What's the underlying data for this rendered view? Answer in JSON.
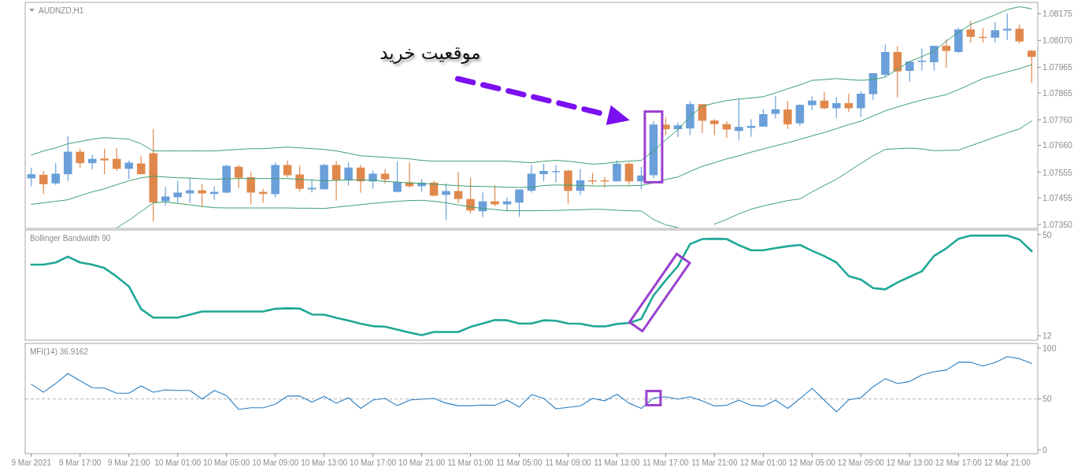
{
  "chart_data": [
    {
      "type": "candlestick",
      "title": "AUDNZD,H1",
      "categories": [
        null,
        null,
        null,
        null,
        null,
        null,
        null,
        null,
        null,
        null,
        null,
        null,
        null,
        null,
        null,
        null,
        null,
        null,
        null,
        null,
        null,
        null,
        null,
        null,
        null,
        null,
        null,
        null,
        null,
        null,
        null,
        null,
        null,
        null,
        null,
        null,
        null,
        null,
        null,
        null,
        null,
        null,
        null,
        null,
        null,
        null,
        null,
        null,
        null,
        null,
        null,
        null,
        null,
        null,
        null,
        null,
        null,
        null,
        null,
        null,
        null,
        null,
        null,
        null,
        null,
        null,
        null,
        null,
        null,
        null,
        null,
        null,
        null,
        null,
        null,
        null,
        null,
        null,
        null,
        null,
        null,
        null,
        null
      ],
      "ohlc": [
        [
          1.07531,
          1.07573,
          1.075,
          1.07547
        ],
        [
          1.07545,
          1.0756,
          1.0747,
          1.07508
        ],
        [
          1.07511,
          1.07591,
          1.07505,
          1.07549
        ],
        [
          1.07547,
          1.07695,
          1.07521,
          1.07635
        ],
        [
          1.07635,
          1.07647,
          1.07572,
          1.0759
        ],
        [
          1.0759,
          1.07623,
          1.07565,
          1.07607
        ],
        [
          1.07608,
          1.07647,
          1.07547,
          1.07601
        ],
        [
          1.07607,
          1.07649,
          1.0756,
          1.07568
        ],
        [
          1.07568,
          1.07601,
          1.07528,
          1.07592
        ],
        [
          1.07589,
          1.07618,
          1.07547,
          1.07547
        ],
        [
          1.07629,
          1.07724,
          1.07362,
          1.07437
        ],
        [
          1.07441,
          1.07497,
          1.07424,
          1.0746
        ],
        [
          1.07457,
          1.07521,
          1.07434,
          1.07475
        ],
        [
          1.07472,
          1.07533,
          1.07436,
          1.07484
        ],
        [
          1.07484,
          1.07508,
          1.07419,
          1.07472
        ],
        [
          1.0747,
          1.075,
          1.07447,
          1.07478
        ],
        [
          1.07475,
          1.07583,
          1.07473,
          1.0758
        ],
        [
          1.07576,
          1.07583,
          1.07492,
          1.07533
        ],
        [
          1.07535,
          1.07556,
          1.07429,
          1.07475
        ],
        [
          1.07478,
          1.0749,
          1.07436,
          1.0747
        ],
        [
          1.07469,
          1.07593,
          1.07457,
          1.07583
        ],
        [
          1.07583,
          1.07601,
          1.07535,
          1.07543
        ],
        [
          1.07546,
          1.0758,
          1.07478,
          1.0749
        ],
        [
          1.07488,
          1.07528,
          1.07475,
          1.07494
        ],
        [
          1.07488,
          1.07588,
          1.07488,
          1.07583
        ],
        [
          1.07583,
          1.07598,
          1.07444,
          1.07524
        ],
        [
          1.07524,
          1.07593,
          1.07503,
          1.07573
        ],
        [
          1.07573,
          1.07583,
          1.07475,
          1.07519
        ],
        [
          1.07519,
          1.07561,
          1.0749,
          1.07549
        ],
        [
          1.07549,
          1.07567,
          1.07511,
          1.07527
        ],
        [
          1.07478,
          1.07596,
          1.07475,
          1.07517
        ],
        [
          1.07515,
          1.07593,
          1.07494,
          1.075
        ],
        [
          1.075,
          1.07527,
          1.07478,
          1.07514
        ],
        [
          1.07514,
          1.07521,
          1.0746,
          1.07463
        ],
        [
          1.07466,
          1.07511,
          1.07367,
          1.07481
        ],
        [
          1.07481,
          1.07556,
          1.07434,
          1.0745
        ],
        [
          1.0745,
          1.07533,
          1.07393,
          1.07405
        ],
        [
          1.07402,
          1.07475,
          1.0738,
          1.07441
        ],
        [
          1.07441,
          1.07503,
          1.07421,
          1.07429
        ],
        [
          1.07429,
          1.07457,
          1.07403,
          1.07441
        ],
        [
          1.07436,
          1.07487,
          1.0738,
          1.07487
        ],
        [
          1.07482,
          1.07583,
          1.07475,
          1.07549
        ],
        [
          1.07547,
          1.07588,
          1.07519,
          1.0756
        ],
        [
          1.07556,
          1.07583,
          1.07516,
          1.07559
        ],
        [
          1.07561,
          1.07564,
          1.07432,
          1.07482
        ],
        [
          1.07482,
          1.07567,
          1.07465,
          1.07523
        ],
        [
          1.07523,
          1.07552,
          1.07506,
          1.07522
        ],
        [
          1.07523,
          1.07536,
          1.07495,
          1.07522
        ],
        [
          1.07519,
          1.07601,
          1.07519,
          1.07588
        ],
        [
          1.07588,
          1.07593,
          1.07506,
          1.07519
        ],
        [
          1.07519,
          1.07576,
          1.07488,
          1.07542
        ],
        [
          1.07543,
          1.07755,
          1.07531,
          1.07741
        ],
        [
          1.07741,
          1.07767,
          1.077,
          1.07723
        ],
        [
          1.07723,
          1.07749,
          1.07692,
          1.07738
        ],
        [
          1.07726,
          1.07832,
          1.077,
          1.07821
        ],
        [
          1.07821,
          1.07821,
          1.07708,
          1.07756
        ],
        [
          1.07757,
          1.07762,
          1.077,
          1.07743
        ],
        [
          1.07743,
          1.07754,
          1.07689,
          1.07722
        ],
        [
          1.07716,
          1.07843,
          1.0768,
          1.07732
        ],
        [
          1.07728,
          1.07762,
          1.07693,
          1.07736
        ],
        [
          1.07733,
          1.07801,
          1.07733,
          1.07782
        ],
        [
          1.07783,
          1.07852,
          1.07765,
          1.07801
        ],
        [
          1.078,
          1.07834,
          1.07724,
          1.07742
        ],
        [
          1.07746,
          1.0782,
          1.07736,
          1.07818
        ],
        [
          1.07817,
          1.07851,
          1.07798,
          1.07835
        ],
        [
          1.07835,
          1.07869,
          1.07801,
          1.07805
        ],
        [
          1.07805,
          1.07849,
          1.07767,
          1.07825
        ],
        [
          1.07825,
          1.07862,
          1.07789,
          1.07805
        ],
        [
          1.07805,
          1.07871,
          1.0777,
          1.07862
        ],
        [
          1.0786,
          1.07942,
          1.07838,
          1.07942
        ],
        [
          1.07936,
          1.08054,
          1.07929,
          1.08025
        ],
        [
          1.08025,
          1.08047,
          1.07847,
          1.07949
        ],
        [
          1.07951,
          1.07987,
          1.07909,
          1.07987
        ],
        [
          1.07986,
          1.08038,
          1.07952,
          1.07991
        ],
        [
          1.07985,
          1.08049,
          1.07952,
          1.08049
        ],
        [
          1.08049,
          1.08074,
          1.07964,
          1.08029
        ],
        [
          1.08025,
          1.0812,
          1.0802,
          1.08113
        ],
        [
          1.08113,
          1.08146,
          1.08062,
          1.08084
        ],
        [
          1.08084,
          1.0812,
          1.08061,
          1.08081
        ],
        [
          1.08081,
          1.08143,
          1.08062,
          1.0811
        ],
        [
          1.08109,
          1.08174,
          1.08072,
          1.08116
        ],
        [
          1.08116,
          1.08133,
          1.08058,
          1.08066
        ],
        [
          1.0803,
          1.08033,
          1.07905,
          1.08006
        ]
      ],
      "colors": [
        "#6a9fd9",
        "#e0884c",
        "#6a9fd9",
        "#6a9fd9",
        "#e0884c",
        "#6a9fd9",
        "#e0884c",
        "#e0884c",
        "#6a9fd9",
        "#e0884c",
        "#e0884c",
        "#6a9fd9",
        "#6a9fd9",
        "#6a9fd9",
        "#e0884c",
        "#6a9fd9",
        "#6a9fd9",
        "#e0884c",
        "#e0884c",
        "#e0884c",
        "#6a9fd9",
        "#e0884c",
        "#e0884c",
        "#6a9fd9",
        "#6a9fd9",
        "#e0884c",
        "#6a9fd9",
        "#e0884c",
        "#6a9fd9",
        "#e0884c",
        "#6a9fd9",
        "#e0884c",
        "#6a9fd9",
        "#e0884c",
        "#6a9fd9",
        "#e0884c",
        "#e0884c",
        "#6a9fd9",
        "#e0884c",
        "#6a9fd9",
        "#6a9fd9",
        "#6a9fd9",
        "#6a9fd9",
        "#6a9fd9",
        "#e0884c",
        "#6a9fd9",
        "#e0884c",
        "#e0884c",
        "#6a9fd9",
        "#e0884c",
        "#6a9fd9",
        "#6a9fd9",
        "#e0884c",
        "#6a9fd9",
        "#6a9fd9",
        "#e0884c",
        "#e0884c",
        "#e0884c",
        "#6a9fd9",
        "#6a9fd9",
        "#6a9fd9",
        "#6a9fd9",
        "#e0884c",
        "#6a9fd9",
        "#6a9fd9",
        "#e0884c",
        "#6a9fd9",
        "#e0884c",
        "#6a9fd9",
        "#6a9fd9",
        "#6a9fd9",
        "#e0884c",
        "#6a9fd9",
        "#6a9fd9",
        "#6a9fd9",
        "#e0884c",
        "#6a9fd9",
        "#e0884c",
        "#e0884c",
        "#6a9fd9",
        "#6a9fd9",
        "#e0884c",
        "#e0884c"
      ],
      "series": [
        {
          "type": "line",
          "color": "#3ca06e",
          "values": [
            1.07622,
            1.07638,
            1.0765,
            1.07666,
            1.07675,
            1.07684,
            1.0769,
            1.07687,
            1.07684,
            1.07666,
            1.07638,
            1.07638,
            1.07638,
            1.07638,
            1.07638,
            1.07638,
            1.07641,
            1.07644,
            1.07647,
            1.07647,
            1.0765,
            1.07653,
            1.0765,
            1.07647,
            1.07644,
            1.07638,
            1.07629,
            1.07619,
            1.07616,
            1.07613,
            1.0761,
            1.07607,
            1.07601,
            1.07598,
            1.07598,
            1.07598,
            1.07598,
            1.07598,
            1.07598,
            1.07598,
            1.07595,
            1.07592,
            1.07598,
            1.07601,
            1.07598,
            1.07592,
            1.07586,
            1.07589,
            1.07595,
            1.07598,
            1.07601,
            1.07638,
            1.07681,
            1.07721,
            1.07773,
            1.07813,
            1.07825,
            1.07835,
            1.07841,
            1.07845,
            1.0785,
            1.07865,
            1.07881,
            1.07896,
            1.07914,
            1.07917,
            1.07921,
            1.07917,
            1.07914,
            1.07917,
            1.07927,
            1.07957,
            1.07988,
            1.08007,
            1.08028,
            1.08068,
            1.08102,
            1.08133,
            1.08151,
            1.0817,
            1.08191,
            1.08202,
            1.08194
          ]
        },
        {
          "type": "line",
          "color": "#3ca06e",
          "values": [
            1.07429,
            1.07435,
            1.07441,
            1.07447,
            1.07463,
            1.07478,
            1.0749,
            1.07506,
            1.07521,
            1.07533,
            1.07539,
            1.07536,
            1.07533,
            1.07532,
            1.07529,
            1.07527,
            1.07529,
            1.0753,
            1.0753,
            1.0753,
            1.0753,
            1.0753,
            1.07527,
            1.07524,
            1.07521,
            1.07523,
            1.07524,
            1.07525,
            1.07523,
            1.07519,
            1.07516,
            1.07513,
            1.07511,
            1.07508,
            1.07505,
            1.07502,
            1.075,
            1.07499,
            1.07498,
            1.07496,
            1.07495,
            1.07496,
            1.07503,
            1.07505,
            1.07504,
            1.07503,
            1.07501,
            1.07501,
            1.07502,
            1.07502,
            1.07503,
            1.07513,
            1.07526,
            1.07536,
            1.07558,
            1.07578,
            1.07592,
            1.07607,
            1.07619,
            1.07633,
            1.07646,
            1.07658,
            1.0767,
            1.07683,
            1.07697,
            1.0771,
            1.07725,
            1.07741,
            1.07754,
            1.07775,
            1.07795,
            1.0781,
            1.07824,
            1.07837,
            1.07848,
            1.07858,
            1.07878,
            1.07899,
            1.07921,
            1.07934,
            1.07947,
            1.0796,
            1.07975
          ]
        },
        {
          "type": "line",
          "color": "#3ca06e",
          "values": [
            null,
            null,
            null,
            null,
            null,
            null,
            null,
            1.07337,
            1.07367,
            1.07401,
            1.07435,
            1.07438,
            1.07433,
            1.07427,
            1.07421,
            1.07416,
            1.07415,
            1.07415,
            1.07415,
            1.07415,
            1.07415,
            1.07415,
            1.07414,
            1.07414,
            1.07413,
            1.07418,
            1.07423,
            1.07428,
            1.07433,
            1.07437,
            1.07441,
            1.07444,
            1.07445,
            1.07441,
            1.07435,
            1.07427,
            1.07419,
            1.07413,
            1.07409,
            1.07404,
            1.07404,
            1.07404,
            1.07405,
            1.07405,
            1.07407,
            1.07408,
            1.0741,
            1.07409,
            1.07406,
            1.07404,
            1.07403,
            1.0737,
            1.07349,
            1.07338,
            null,
            null,
            1.07352,
            1.0737,
            1.07392,
            1.0741,
            1.07423,
            1.07433,
            1.07444,
            1.0745,
            1.07478,
            1.07503,
            1.07527,
            1.07558,
            1.07589,
            1.07619,
            1.07644,
            1.07647,
            1.07649,
            1.07646,
            1.07639,
            1.0764,
            1.07641,
            1.07658,
            1.07675,
            1.07692,
            1.07709,
            1.07724,
            1.07755
          ]
        }
      ],
      "ylim": [
        1.07335,
        1.08219
      ],
      "yticks": [
        1.08175,
        {
          "value": 1.0807,
          "label": "1.08070"
        },
        1.07965,
        1.07865,
        {
          "value": 1.0776,
          "label": "1.07760"
        },
        {
          "value": 1.0766,
          "label": "1.07660"
        },
        1.07555,
        1.07455,
        {
          "value": 1.0735,
          "label": "1.07350"
        }
      ],
      "tick_labels": "y",
      "annotations": [
        "موقعیت خرید"
      ]
    },
    {
      "type": "line",
      "title": "Bollinger Bandwidth 90",
      "categories": [
        null,
        null,
        null,
        null,
        null,
        null,
        null,
        null,
        null,
        null,
        null,
        null,
        null,
        null,
        null,
        null,
        null,
        null,
        null,
        null,
        null,
        null,
        null,
        null,
        null,
        null,
        null,
        null,
        null,
        null,
        null,
        null,
        null,
        null,
        null,
        null,
        null,
        null,
        null,
        null,
        null,
        null,
        null,
        null,
        null,
        null,
        null,
        null,
        null,
        null,
        null,
        null,
        null,
        null,
        null,
        null,
        null,
        null,
        null,
        null,
        null,
        null,
        null,
        null,
        null,
        null,
        null,
        null,
        null,
        null,
        null,
        null,
        null,
        null,
        null,
        null,
        null,
        null,
        null,
        null,
        null,
        null,
        null
      ],
      "series": [
        {
          "color": "#20a896",
          "values": [
            38.7,
            38.7,
            39.5,
            41.7,
            39.5,
            38.7,
            37.4,
            34.2,
            30.5,
            22.0,
            18.8,
            18.8,
            18.8,
            19.9,
            21.1,
            21.1,
            21.1,
            21.1,
            21.1,
            21.1,
            22.1,
            22.3,
            22.2,
            20.0,
            19.9,
            18.7,
            17.7,
            16.5,
            15.6,
            15.4,
            14.3,
            13.2,
            12.2,
            13.4,
            13.4,
            13.4,
            15.3,
            16.6,
            17.9,
            17.8,
            16.6,
            16.6,
            17.8,
            17.6,
            16.6,
            16.5,
            15.6,
            15.5,
            16.4,
            16.8,
            18.3,
            27.1,
            32.8,
            38.1,
            46.4,
            48.3,
            48.4,
            48.3,
            46.0,
            44.1,
            44.1,
            44.9,
            45.6,
            46.1,
            43.9,
            41.9,
            39.5,
            34.4,
            33.1,
            29.9,
            29.4,
            32.0,
            34.1,
            36.2,
            42.0,
            44.8,
            48.4,
            49.6,
            49.6,
            49.6,
            49.6,
            48.1,
            43.7
          ]
        }
      ],
      "ylim": [
        10.3,
        51.7
      ],
      "yticks": [
        12,
        50
      ],
      "tick_labels": "y"
    },
    {
      "type": "line",
      "title": "MFI(14) 36.9162",
      "categories": [
        "9 Mar 2021",
        null,
        null,
        null,
        "9 Mar 17:00",
        null,
        null,
        null,
        "9 Mar 21:00",
        null,
        null,
        null,
        "10 Mar 01:00",
        null,
        null,
        null,
        "10 Mar 05:00",
        null,
        null,
        null,
        "10 Mar 09:00",
        null,
        null,
        null,
        "10 Mar 13:00",
        null,
        null,
        null,
        "10 Mar 17:00",
        null,
        null,
        null,
        "10 Mar 21:00",
        null,
        null,
        null,
        "11 Mar 01:00",
        null,
        null,
        null,
        "11 Mar 05:00",
        null,
        null,
        null,
        "11 Mar 09:00",
        null,
        null,
        null,
        "11 Mar 13:00",
        null,
        null,
        null,
        "11 Mar 17:00",
        null,
        null,
        null,
        "11 Mar 21:00",
        null,
        null,
        null,
        "12 Mar 01:00",
        null,
        null,
        null,
        "12 Mar 05:00",
        null,
        null,
        null,
        "12 Mar 09:00",
        null,
        null,
        null,
        "12 Mar 13:00",
        null,
        null,
        null,
        "12 Mar 17:00",
        null,
        null,
        null,
        "12 Mar 21:00",
        null,
        null
      ],
      "series": [
        {
          "color": "#2a7ec3",
          "values": [
            64.4,
            56.6,
            65.1,
            74.9,
            67.7,
            61.0,
            60.6,
            55.6,
            55.6,
            62.7,
            56.6,
            58.9,
            58.3,
            58.3,
            49.8,
            58.3,
            53.2,
            39.7,
            41.3,
            41.3,
            44.7,
            52.8,
            52.8,
            46.8,
            52.5,
            45.8,
            51.1,
            40.7,
            48.8,
            50.5,
            43.3,
            48.8,
            49.8,
            50.5,
            45.8,
            43.3,
            43.3,
            44.0,
            43.7,
            48.8,
            42.0,
            54.2,
            50.5,
            40.3,
            41.7,
            43.0,
            50.5,
            48.1,
            54.6,
            45.8,
            40.7,
            50.8,
            52.1,
            49.8,
            52.1,
            48.1,
            43.0,
            43.7,
            48.8,
            43.7,
            42.7,
            48.8,
            40.7,
            50.1,
            60.3,
            48.8,
            37.3,
            49.1,
            51.1,
            62.0,
            69.8,
            65.1,
            67.1,
            73.5,
            76.6,
            78.3,
            86.0,
            86.0,
            82.3,
            85.7,
            91.5,
            89.5,
            84.7
          ]
        }
      ],
      "ylim": [
        -3.8,
        104.5
      ],
      "yticks": [
        0,
        50,
        100
      ],
      "ref_lines": [
        {
          "axis": "y",
          "value": 50,
          "color": "#b4b4b4",
          "line_style": "dashed"
        }
      ]
    }
  ]
}
